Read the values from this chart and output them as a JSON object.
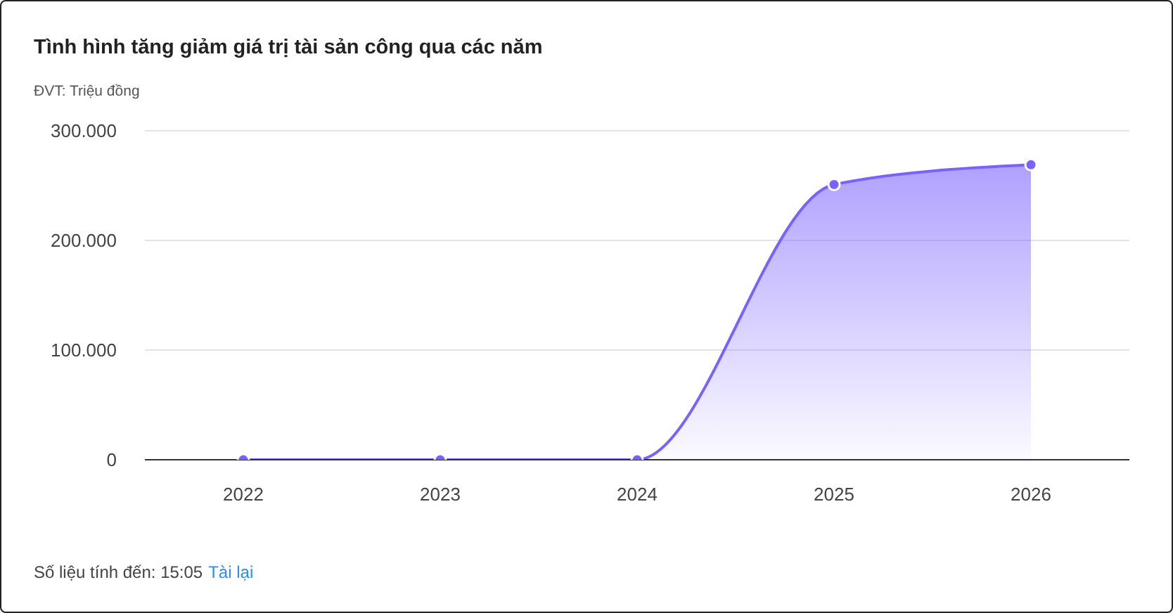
{
  "chart_data": {
    "type": "area",
    "title": "Tình hình tăng giảm giá trị tài sản công qua các năm",
    "subtitle": "ĐVT: Triệu đồng",
    "annotations": [
      "Số liệu tính đến: 15:05",
      "Tài lại"
    ],
    "categories": [
      "2022",
      "2023",
      "2024",
      "2025",
      "2026"
    ],
    "series": [
      {
        "color": "#7b61ff",
        "values": [
          0,
          0,
          0,
          251000,
          269000
        ]
      }
    ],
    "ylim": [
      0,
      300000
    ],
    "yticks": [
      {
        "value": 0,
        "label": "0"
      },
      {
        "value": 100000,
        "label": "100.000"
      },
      {
        "value": 200000,
        "label": "200.000"
      },
      {
        "value": 300000,
        "label": "300.000"
      }
    ],
    "grid": "y",
    "marker": "circle"
  }
}
